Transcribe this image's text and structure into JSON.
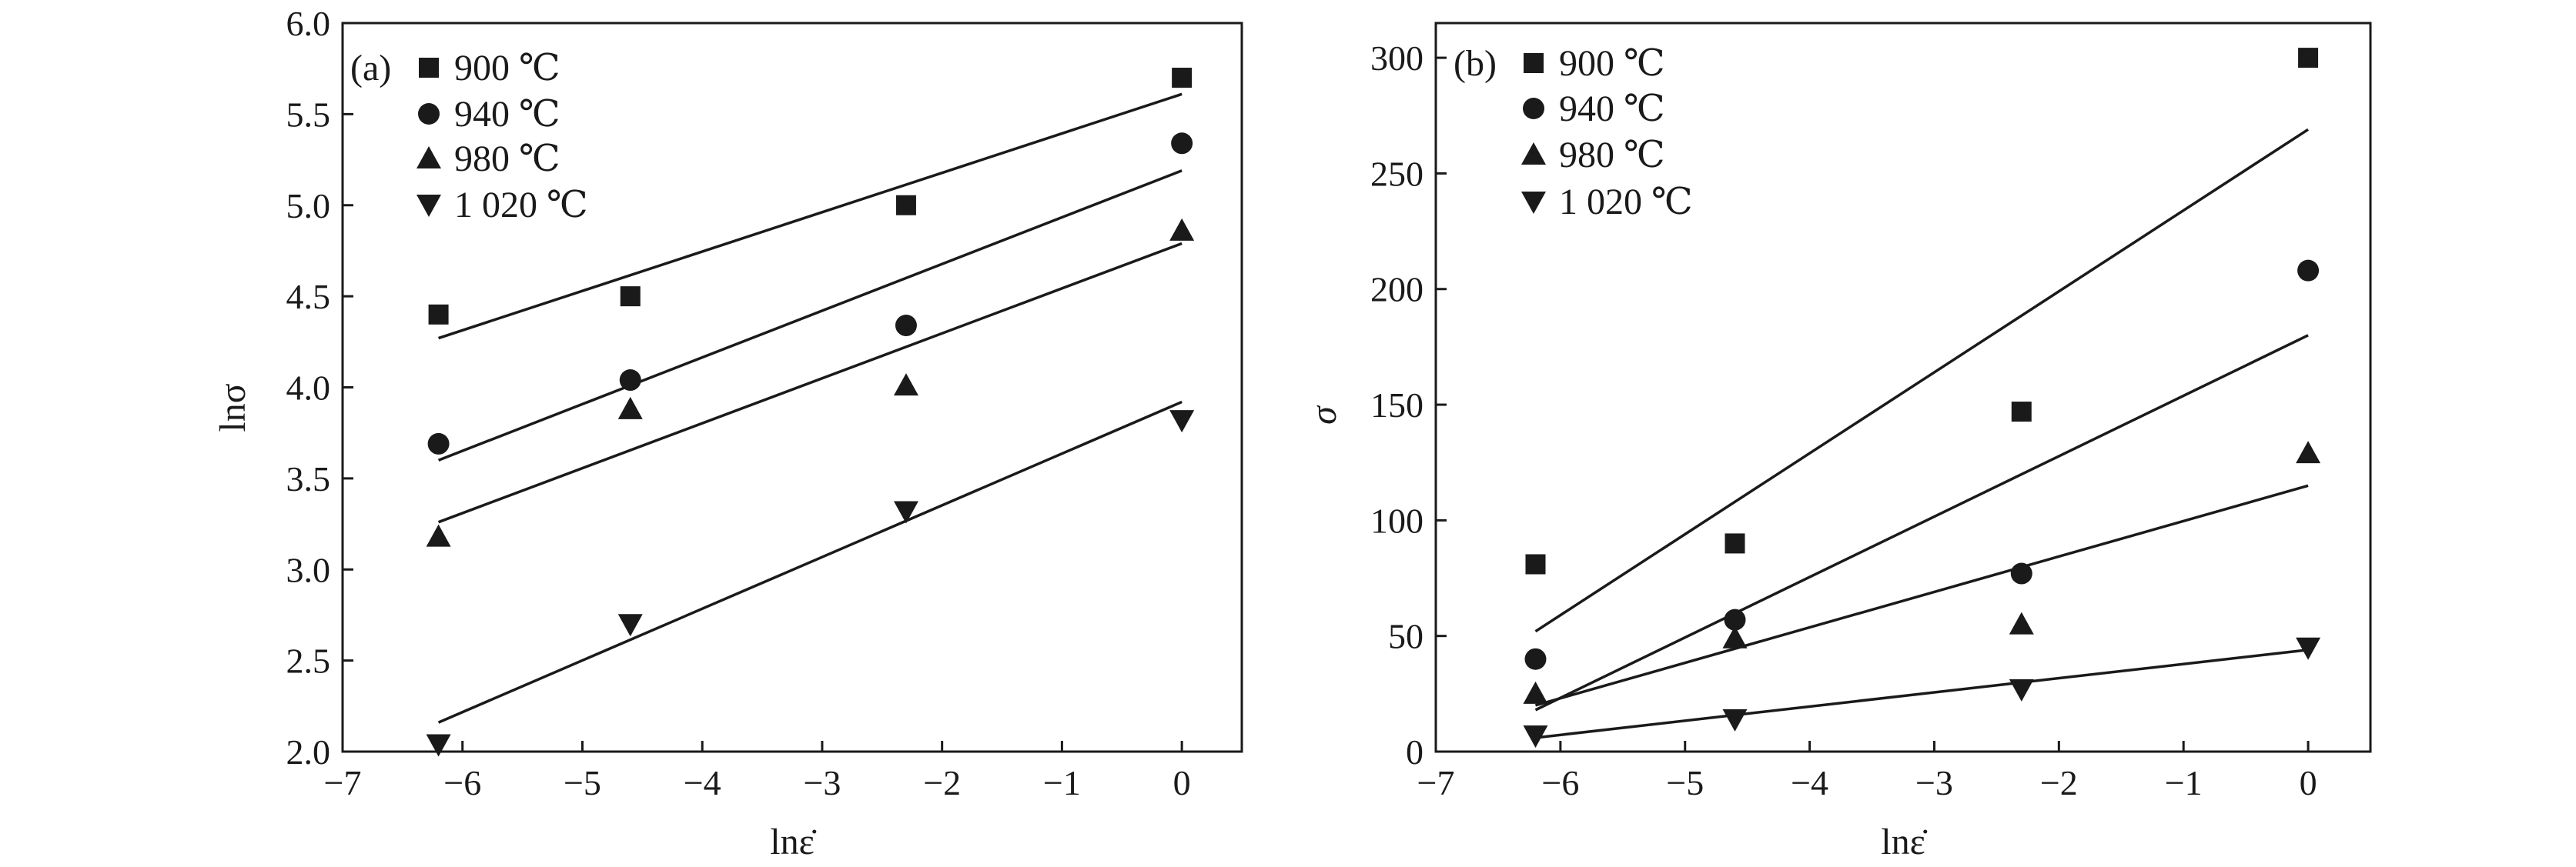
{
  "chart_data": [
    {
      "type": "scatter",
      "panel_label": "(a)",
      "xlabel": "lnε̇",
      "ylabel": "lnσ",
      "xlim": [
        -7,
        0.5
      ],
      "ylim": [
        2.0,
        6.0
      ],
      "x_ticks": [
        -7,
        -6,
        -5,
        -4,
        -3,
        -2,
        -1,
        0
      ],
      "x_tick_labels": [
        "−7",
        "−6",
        "−5",
        "−4",
        "−3",
        "−2",
        "−1",
        "0"
      ],
      "y_ticks": [
        2.0,
        2.5,
        3.0,
        3.5,
        4.0,
        4.5,
        5.0,
        5.5,
        6.0
      ],
      "y_tick_labels": [
        "2.0",
        "2.5",
        "3.0",
        "3.5",
        "4.0",
        "4.5",
        "5.0",
        "5.5",
        "6.0"
      ],
      "legend_position": "top-left",
      "grid": false,
      "series": [
        {
          "name": "900 ℃",
          "marker": "square",
          "x": [
            -6.2,
            -4.6,
            -2.3,
            0
          ],
          "y": [
            4.4,
            4.5,
            5.0,
            5.7
          ],
          "fit": {
            "x": [
              -6.2,
              0
            ],
            "y": [
              4.27,
              5.61
            ]
          }
        },
        {
          "name": "940 ℃",
          "marker": "circle",
          "x": [
            -6.2,
            -4.6,
            -2.3,
            0
          ],
          "y": [
            3.69,
            4.04,
            4.34,
            5.34
          ],
          "fit": {
            "x": [
              -6.2,
              0
            ],
            "y": [
              3.6,
              5.19
            ]
          }
        },
        {
          "name": "980 ℃",
          "marker": "triangle-up",
          "x": [
            -6.2,
            -4.6,
            -2.3,
            0
          ],
          "y": [
            3.18,
            3.88,
            4.01,
            4.86
          ],
          "fit": {
            "x": [
              -6.2,
              0
            ],
            "y": [
              3.26,
              4.79
            ]
          }
        },
        {
          "name": "1 020 ℃",
          "marker": "triangle-down",
          "x": [
            -6.2,
            -4.6,
            -2.3,
            0
          ],
          "y": [
            2.04,
            2.7,
            3.32,
            3.82
          ],
          "fit": {
            "x": [
              -6.2,
              0
            ],
            "y": [
              2.16,
              3.92
            ]
          }
        }
      ]
    },
    {
      "type": "scatter",
      "panel_label": "(b)",
      "xlabel": "lnε̇",
      "ylabel": "σ",
      "xlim": [
        -7,
        0.5
      ],
      "ylim": [
        0,
        315
      ],
      "x_ticks": [
        -7,
        -6,
        -5,
        -4,
        -3,
        -2,
        -1,
        0
      ],
      "x_tick_labels": [
        "−7",
        "−6",
        "−5",
        "−4",
        "−3",
        "−2",
        "−1",
        "0"
      ],
      "y_ticks": [
        0,
        50,
        100,
        150,
        200,
        250,
        300
      ],
      "y_tick_labels": [
        "0",
        "50",
        "100",
        "150",
        "200",
        "250",
        "300"
      ],
      "legend_position": "top-left",
      "grid": false,
      "series": [
        {
          "name": "900 ℃",
          "marker": "square",
          "x": [
            -6.2,
            -4.6,
            -2.3,
            0
          ],
          "y": [
            81,
            90,
            147,
            300
          ],
          "fit": {
            "x": [
              -6.2,
              0
            ],
            "y": [
              52,
              269
            ]
          }
        },
        {
          "name": "940 ℃",
          "marker": "circle",
          "x": [
            -6.2,
            -4.6,
            -2.3,
            0
          ],
          "y": [
            40,
            57,
            77,
            208
          ],
          "fit": {
            "x": [
              -6.2,
              0
            ],
            "y": [
              18,
              180
            ]
          }
        },
        {
          "name": "980 ℃",
          "marker": "triangle-up",
          "x": [
            -6.2,
            -4.6,
            -2.3,
            0
          ],
          "y": [
            25,
            49,
            55,
            129
          ],
          "fit": {
            "x": [
              -6.2,
              0
            ],
            "y": [
              20,
              115
            ]
          }
        },
        {
          "name": "1 020 ℃",
          "marker": "triangle-down",
          "x": [
            -6.2,
            -4.6,
            -2.3,
            0
          ],
          "y": [
            7,
            14,
            27,
            45
          ],
          "fit": {
            "x": [
              -6.2,
              0
            ],
            "y": [
              6,
              44
            ]
          }
        }
      ]
    }
  ]
}
